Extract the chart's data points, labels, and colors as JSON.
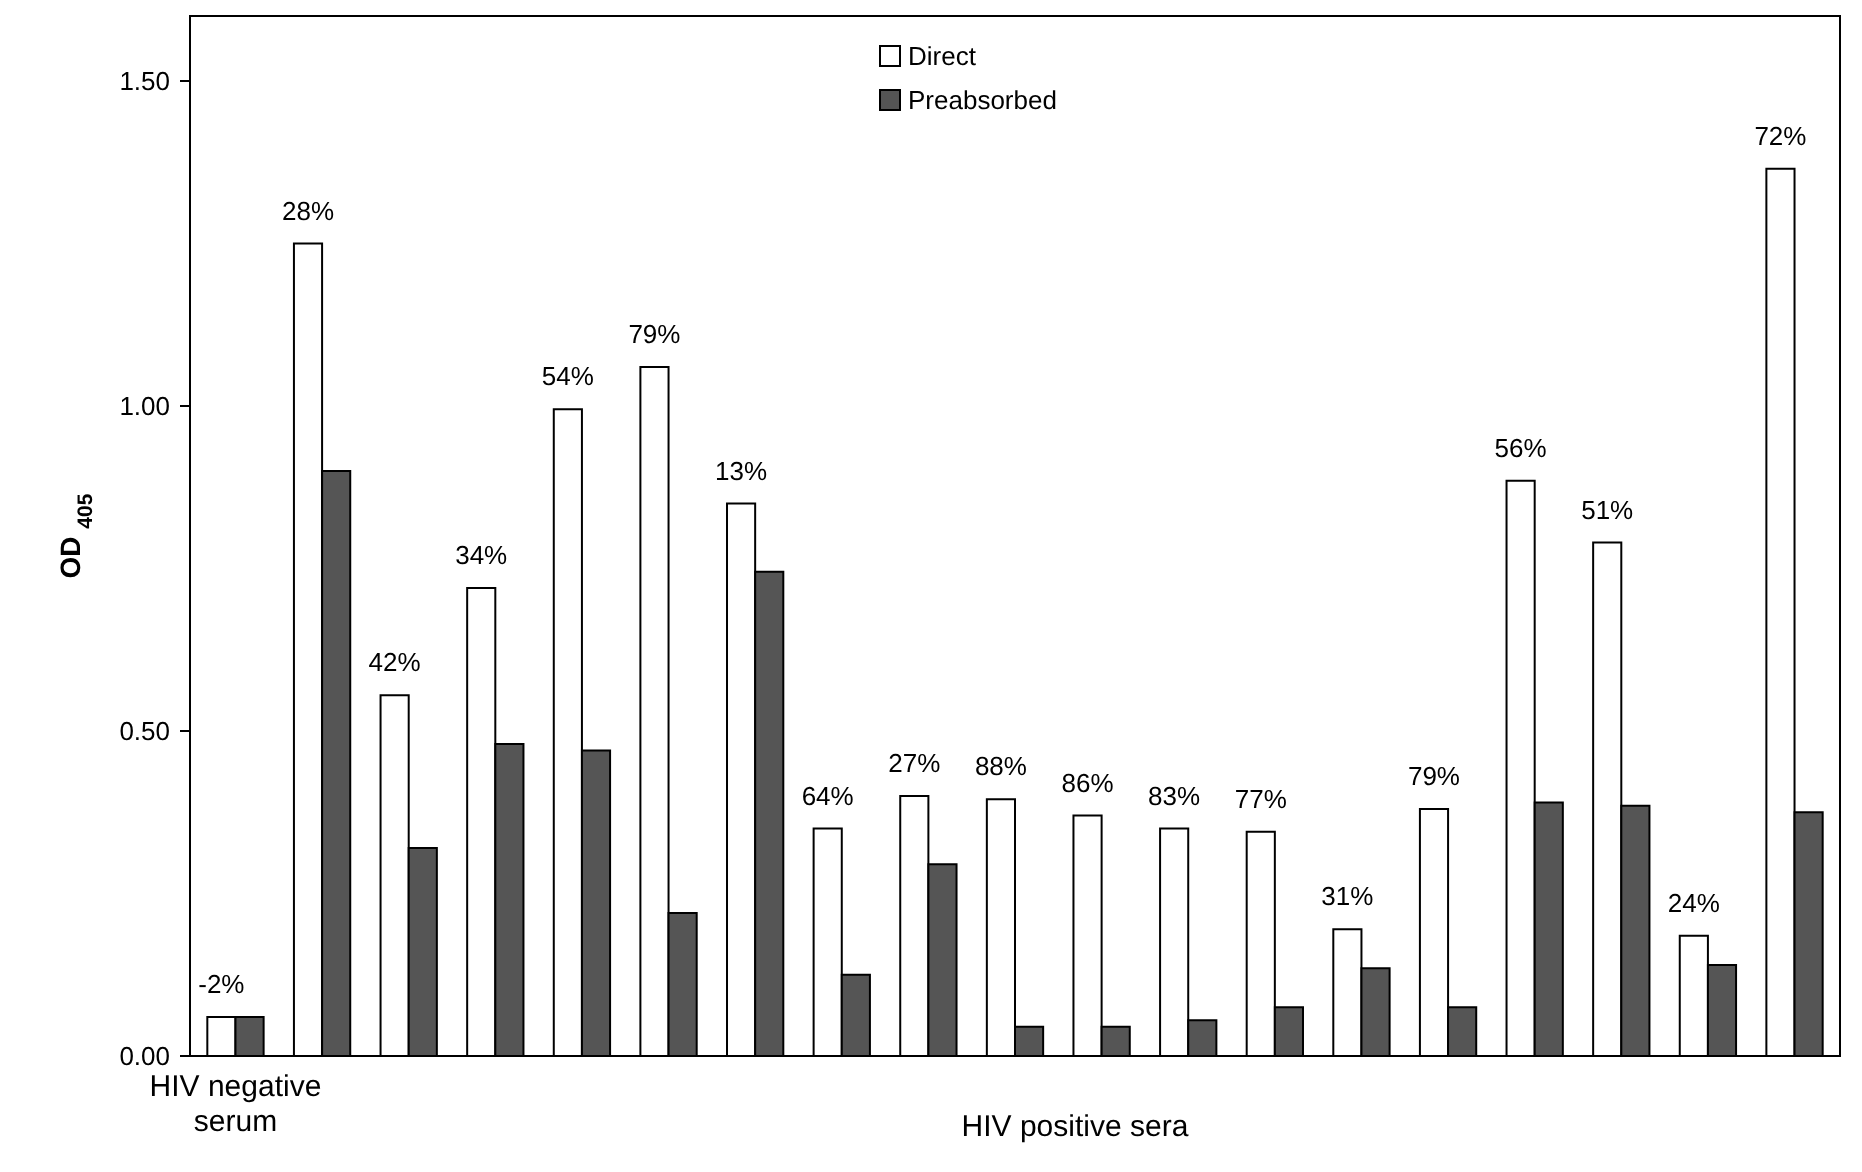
{
  "chart_data": {
    "type": "bar",
    "ylabel": "OD $_{405}$",
    "categories": [
      "HIV negative serum",
      null,
      null,
      null,
      null,
      null,
      null,
      null,
      null,
      null,
      null,
      null,
      null,
      null,
      null,
      null,
      null,
      null,
      null
    ],
    "series": [
      {
        "name": "Direct",
        "color": "#ffffff",
        "values": [
          0.06,
          1.25,
          0.555,
          0.72,
          0.995,
          1.06,
          0.85,
          0.35,
          0.4,
          0.395,
          0.37,
          0.35,
          0.345,
          0.195,
          0.38,
          0.885,
          0.79,
          0.185,
          1.365
        ]
      },
      {
        "name": "Preabsorbed",
        "color": "#555555",
        "values": [
          0.06,
          0.9,
          0.32,
          0.48,
          0.47,
          0.22,
          0.745,
          0.125,
          0.295,
          0.045,
          0.045,
          0.055,
          0.075,
          0.135,
          0.075,
          0.39,
          0.385,
          0.14,
          0.375
        ]
      }
    ],
    "annotations": [
      "HIV positive sera",
      {
        "text": "-2%",
        "y": 0.06
      },
      {
        "text": "28%",
        "y": 1.25
      },
      {
        "text": "42%",
        "y": 0.555
      },
      {
        "text": "34%",
        "y": 0.72
      },
      {
        "text": "54%",
        "y": 0.995
      },
      {
        "text": "79%",
        "y": 1.06
      },
      {
        "text": "13%",
        "y": 0.85
      },
      {
        "text": "64%",
        "y": 0.35
      },
      {
        "text": "27%",
        "y": 0.4
      },
      {
        "text": "88%",
        "y": 0.395
      },
      {
        "text": "86%",
        "y": 0.37
      },
      {
        "text": "83%",
        "y": 0.35
      },
      {
        "text": "77%",
        "y": 0.345
      },
      {
        "text": "31%",
        "y": 0.195
      },
      {
        "text": "79%",
        "y": 0.38
      },
      {
        "text": "56%",
        "y": 0.885
      },
      {
        "text": "51%",
        "y": 0.79
      },
      {
        "text": "24%",
        "y": 0.185
      },
      {
        "text": "72%",
        "y": 1.365
      }
    ],
    "ylim": [
      0,
      1.6
    ],
    "yticks": [
      {
        "value": 0,
        "label": "0.00"
      },
      {
        "value": 0.5,
        "label": "0.50"
      },
      {
        "value": 1,
        "label": "1.00"
      },
      {
        "value": 1.5,
        "label": "1.50"
      }
    ],
    "grid": false,
    "legend": "top"
  }
}
